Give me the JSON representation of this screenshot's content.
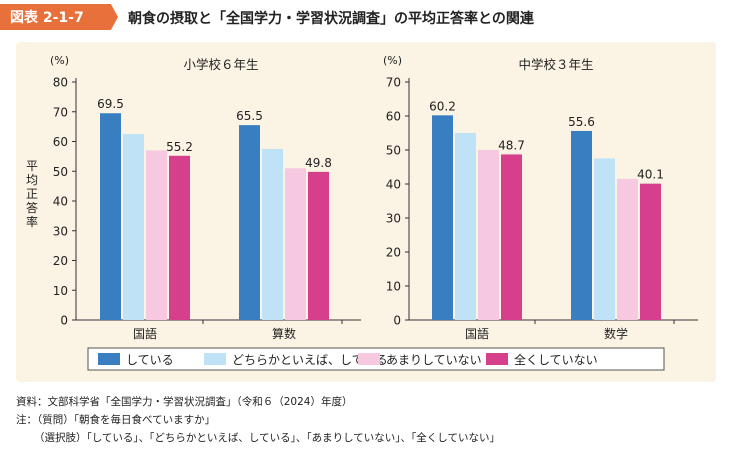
{
  "header": {
    "badge": "図表 2-1-7",
    "title": "朝食の摂取と「全国学力・学習状況調査」の平均正答率との関連"
  },
  "colors": {
    "series": [
      "#3a7ec2",
      "#bfe2f6",
      "#f7c9e0",
      "#d63f8c"
    ],
    "panel_bg": "#fbf3e4",
    "accent": "#e8703a"
  },
  "legend": [
    "している",
    "どちらかといえば、している",
    "あまりしていない",
    "全くしていない"
  ],
  "chart_data": [
    {
      "type": "bar",
      "title": "小学校６年生",
      "unit": "(%)",
      "ylabel": "平均正答率",
      "ylim": [
        0,
        80
      ],
      "yticks": [
        0,
        10,
        20,
        30,
        40,
        50,
        60,
        70,
        80
      ],
      "categories": [
        "国語",
        "算数"
      ],
      "series": [
        {
          "name": "している",
          "values": [
            69.5,
            65.5
          ]
        },
        {
          "name": "どちらかといえば、している",
          "values": [
            62.5,
            57.5
          ]
        },
        {
          "name": "あまりしていない",
          "values": [
            57.0,
            51.0
          ]
        },
        {
          "name": "全くしていない",
          "values": [
            55.2,
            49.8
          ]
        }
      ],
      "labeled": [
        [
          69.5,
          null,
          null,
          55.2
        ],
        [
          65.5,
          null,
          null,
          49.8
        ]
      ]
    },
    {
      "type": "bar",
      "title": "中学校３年生",
      "unit": "(%)",
      "ylim": [
        0,
        70
      ],
      "yticks": [
        0,
        10,
        20,
        30,
        40,
        50,
        60,
        70
      ],
      "categories": [
        "国語",
        "数学"
      ],
      "series": [
        {
          "name": "している",
          "values": [
            60.2,
            55.6
          ]
        },
        {
          "name": "どちらかといえば、している",
          "values": [
            55.0,
            47.5
          ]
        },
        {
          "name": "あまりしていない",
          "values": [
            50.0,
            41.5
          ]
        },
        {
          "name": "全くしていない",
          "values": [
            48.7,
            40.1
          ]
        }
      ],
      "labeled": [
        [
          60.2,
          null,
          null,
          48.7
        ],
        [
          55.6,
          null,
          null,
          40.1
        ]
      ]
    }
  ],
  "notes": {
    "source": "資料：文部科学省「全国学力・学習状況調査」（令和６（2024）年度）",
    "note1": "注：（質問）「朝食を毎日食べていますか」",
    "note2": "（選択肢）「している」、「どちらかといえば、している」、「あまりしていない」、「全くしていない」"
  }
}
